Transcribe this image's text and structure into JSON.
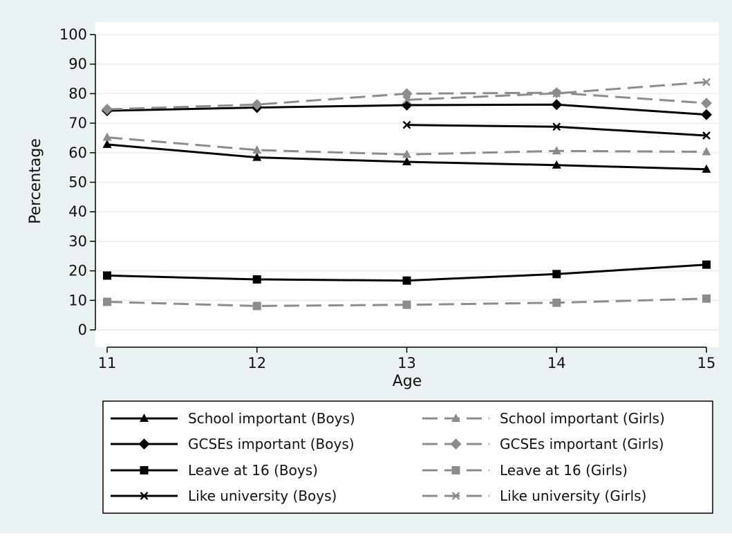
{
  "chart_data": {
    "type": "line",
    "title": "",
    "xlabel": "Age",
    "ylabel": "Percentage",
    "x": [
      11,
      12,
      13,
      14,
      15
    ],
    "xlim": [
      11,
      15
    ],
    "ylim": [
      0,
      100
    ],
    "yticks": [
      0,
      10,
      20,
      30,
      40,
      50,
      60,
      70,
      80,
      90,
      100
    ],
    "grid": true,
    "legend_position": "bottom",
    "colors": {
      "background": "#eaf2f3",
      "plot_background": "#ffffff",
      "boys": "#000000",
      "girls": "#8c8c8c",
      "grid": "#eaf2f3"
    },
    "series": [
      {
        "name": "School important (Boys)",
        "group": "boys",
        "marker": "triangle",
        "dash": "solid",
        "values": [
          62.8,
          58.4,
          56.9,
          55.8,
          54.4
        ]
      },
      {
        "name": "School important (Girls)",
        "group": "girls",
        "marker": "triangle",
        "dash": "dashed",
        "values": [
          65.2,
          60.9,
          59.4,
          60.6,
          60.3
        ]
      },
      {
        "name": "GCSEs important (Boys)",
        "group": "boys",
        "marker": "diamond",
        "dash": "solid",
        "values": [
          74.2,
          75.3,
          76.1,
          76.3,
          72.9
        ]
      },
      {
        "name": "GCSEs important (Girls)",
        "group": "girls",
        "marker": "diamond",
        "dash": "dashed",
        "values": [
          74.7,
          76.3,
          80.0,
          80.3,
          76.8
        ]
      },
      {
        "name": "Leave at 16 (Boys)",
        "group": "boys",
        "marker": "square",
        "dash": "solid",
        "values": [
          18.4,
          17.1,
          16.7,
          18.9,
          22.1
        ]
      },
      {
        "name": "Leave at 16 (Girls)",
        "group": "girls",
        "marker": "square",
        "dash": "dashed",
        "values": [
          9.5,
          8.1,
          8.5,
          9.2,
          10.6
        ]
      },
      {
        "name": "Like university (Boys)",
        "group": "boys",
        "marker": "x",
        "dash": "solid",
        "values": [
          null,
          null,
          69.4,
          68.8,
          65.8
        ]
      },
      {
        "name": "Like university (Girls)",
        "group": "girls",
        "marker": "x",
        "dash": "dashed",
        "values": [
          null,
          null,
          77.9,
          80.1,
          83.9
        ]
      }
    ]
  }
}
